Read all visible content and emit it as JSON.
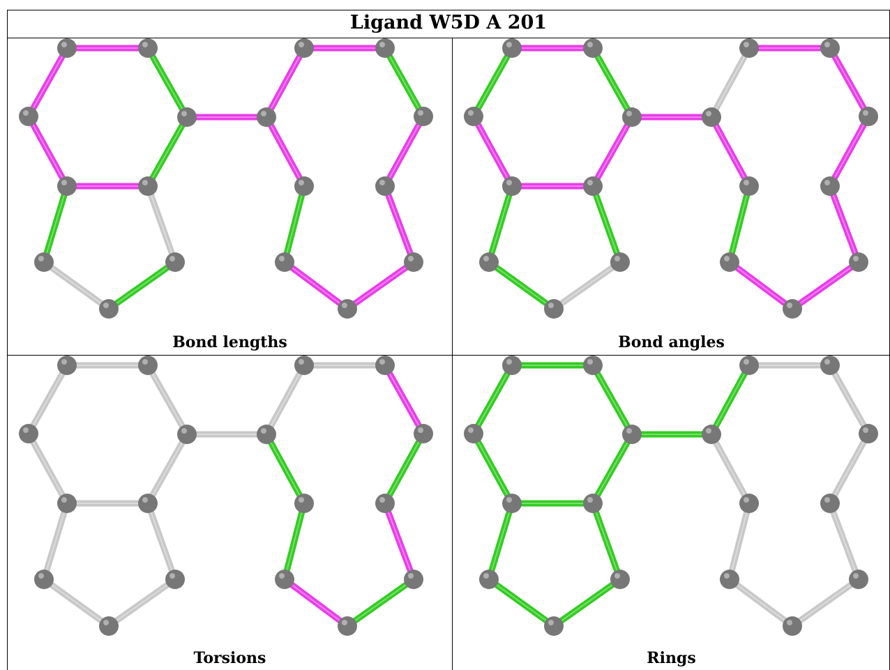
{
  "title": "Ligand W5D A 201",
  "colors": {
    "magenta": "#e83ee8",
    "green": "#33cc22",
    "gray": "#c8c8c8",
    "atom": "#777777"
  },
  "panels": [
    {
      "caption": "Bond lengths",
      "bond_colors": [
        "magenta",
        "green",
        "green",
        "magenta",
        "magenta",
        "magenta",
        "magenta",
        "green",
        "gray",
        "gray",
        "green",
        "magenta",
        "magenta",
        "green",
        "magenta",
        "magenta",
        "green",
        "magenta",
        "magenta",
        "magenta"
      ]
    },
    {
      "caption": "Bond angles",
      "bond_colors": [
        "magenta",
        "green",
        "magenta",
        "green",
        "magenta",
        "magenta",
        "magenta",
        "green",
        "green",
        "green",
        "gray",
        "gray",
        "magenta",
        "magenta",
        "magenta",
        "magenta",
        "green",
        "magenta",
        "magenta",
        "magenta"
      ]
    },
    {
      "caption": "Torsions",
      "bond_colors": [
        "gray",
        "gray",
        "gray",
        "gray",
        "gray",
        "gray",
        "gray",
        "gray",
        "gray",
        "gray",
        "gray",
        "gray",
        "gray",
        "magenta",
        "green",
        "green",
        "green",
        "magenta",
        "green",
        "magenta"
      ]
    },
    {
      "caption": "Rings",
      "bond_colors": [
        "green",
        "green",
        "green",
        "green",
        "green",
        "green",
        "green",
        "green",
        "green",
        "green",
        "green",
        "green",
        "gray",
        "gray",
        "gray",
        "gray",
        "gray",
        "gray",
        "gray",
        "gray"
      ]
    }
  ]
}
